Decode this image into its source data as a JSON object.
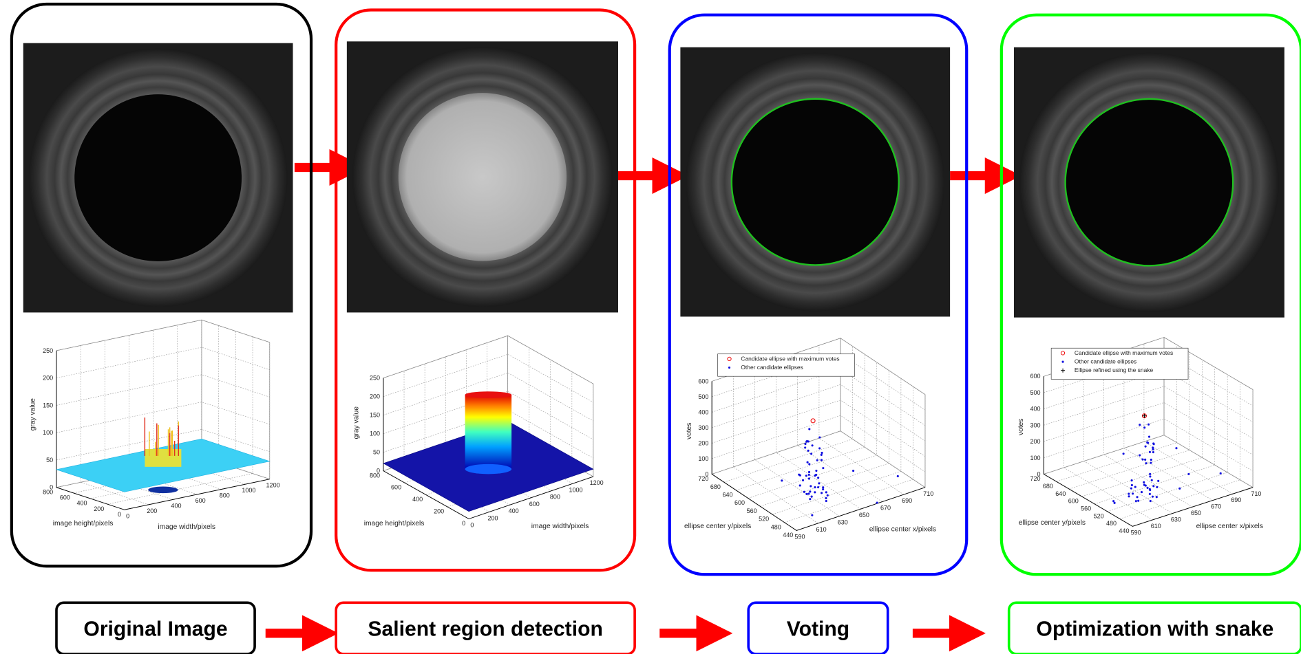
{
  "panels": [
    {
      "label": "Original Image",
      "plot": {
        "zlabel": "gray value",
        "xlabel": "image width/pixels",
        "ylabel": "image height/pixels",
        "zticks": [
          0,
          50,
          100,
          150,
          200,
          250
        ],
        "xticks": [
          0,
          200,
          400,
          600,
          800,
          1000,
          1200
        ],
        "yticks": [
          800,
          600,
          400,
          200,
          0
        ]
      }
    },
    {
      "label": "Salient region detection",
      "plot": {
        "zlabel": "gray value",
        "xlabel": "image width/pixels",
        "ylabel": "image height/pixels",
        "zticks": [
          0,
          50,
          100,
          150,
          200,
          250
        ],
        "xticks": [
          0,
          200,
          400,
          600,
          800,
          1000,
          1200
        ],
        "yticks": [
          800,
          600,
          400,
          200,
          0
        ]
      }
    },
    {
      "label": "Voting",
      "plot": {
        "legend": [
          "Candidate ellipse with maximum votes",
          "Other candidate ellipses"
        ],
        "zlabel": "votes",
        "xlabel": "ellipse center x/pixels",
        "ylabel": "ellipse center y/pixels",
        "zticks": [
          0,
          100,
          200,
          300,
          400,
          500,
          600
        ],
        "xticks": [
          590,
          610,
          630,
          650,
          670,
          690,
          710
        ],
        "yticks": [
          720,
          680,
          640,
          600,
          560,
          520,
          480,
          440
        ]
      }
    },
    {
      "label": "Optimization with snake",
      "plot": {
        "legend": [
          "Candidate ellipse with maximum votes",
          "Other candidate ellipses",
          "Ellipse refined using the snake"
        ],
        "zlabel": "votes",
        "xlabel": "ellipse center x/pixels",
        "ylabel": "ellipse center y/pixels",
        "zticks": [
          0,
          100,
          200,
          300,
          400,
          500,
          600
        ],
        "xticks": [
          590,
          610,
          630,
          650,
          670,
          690,
          710
        ],
        "yticks": [
          720,
          680,
          640,
          600,
          560,
          520,
          480,
          440
        ]
      }
    }
  ]
}
